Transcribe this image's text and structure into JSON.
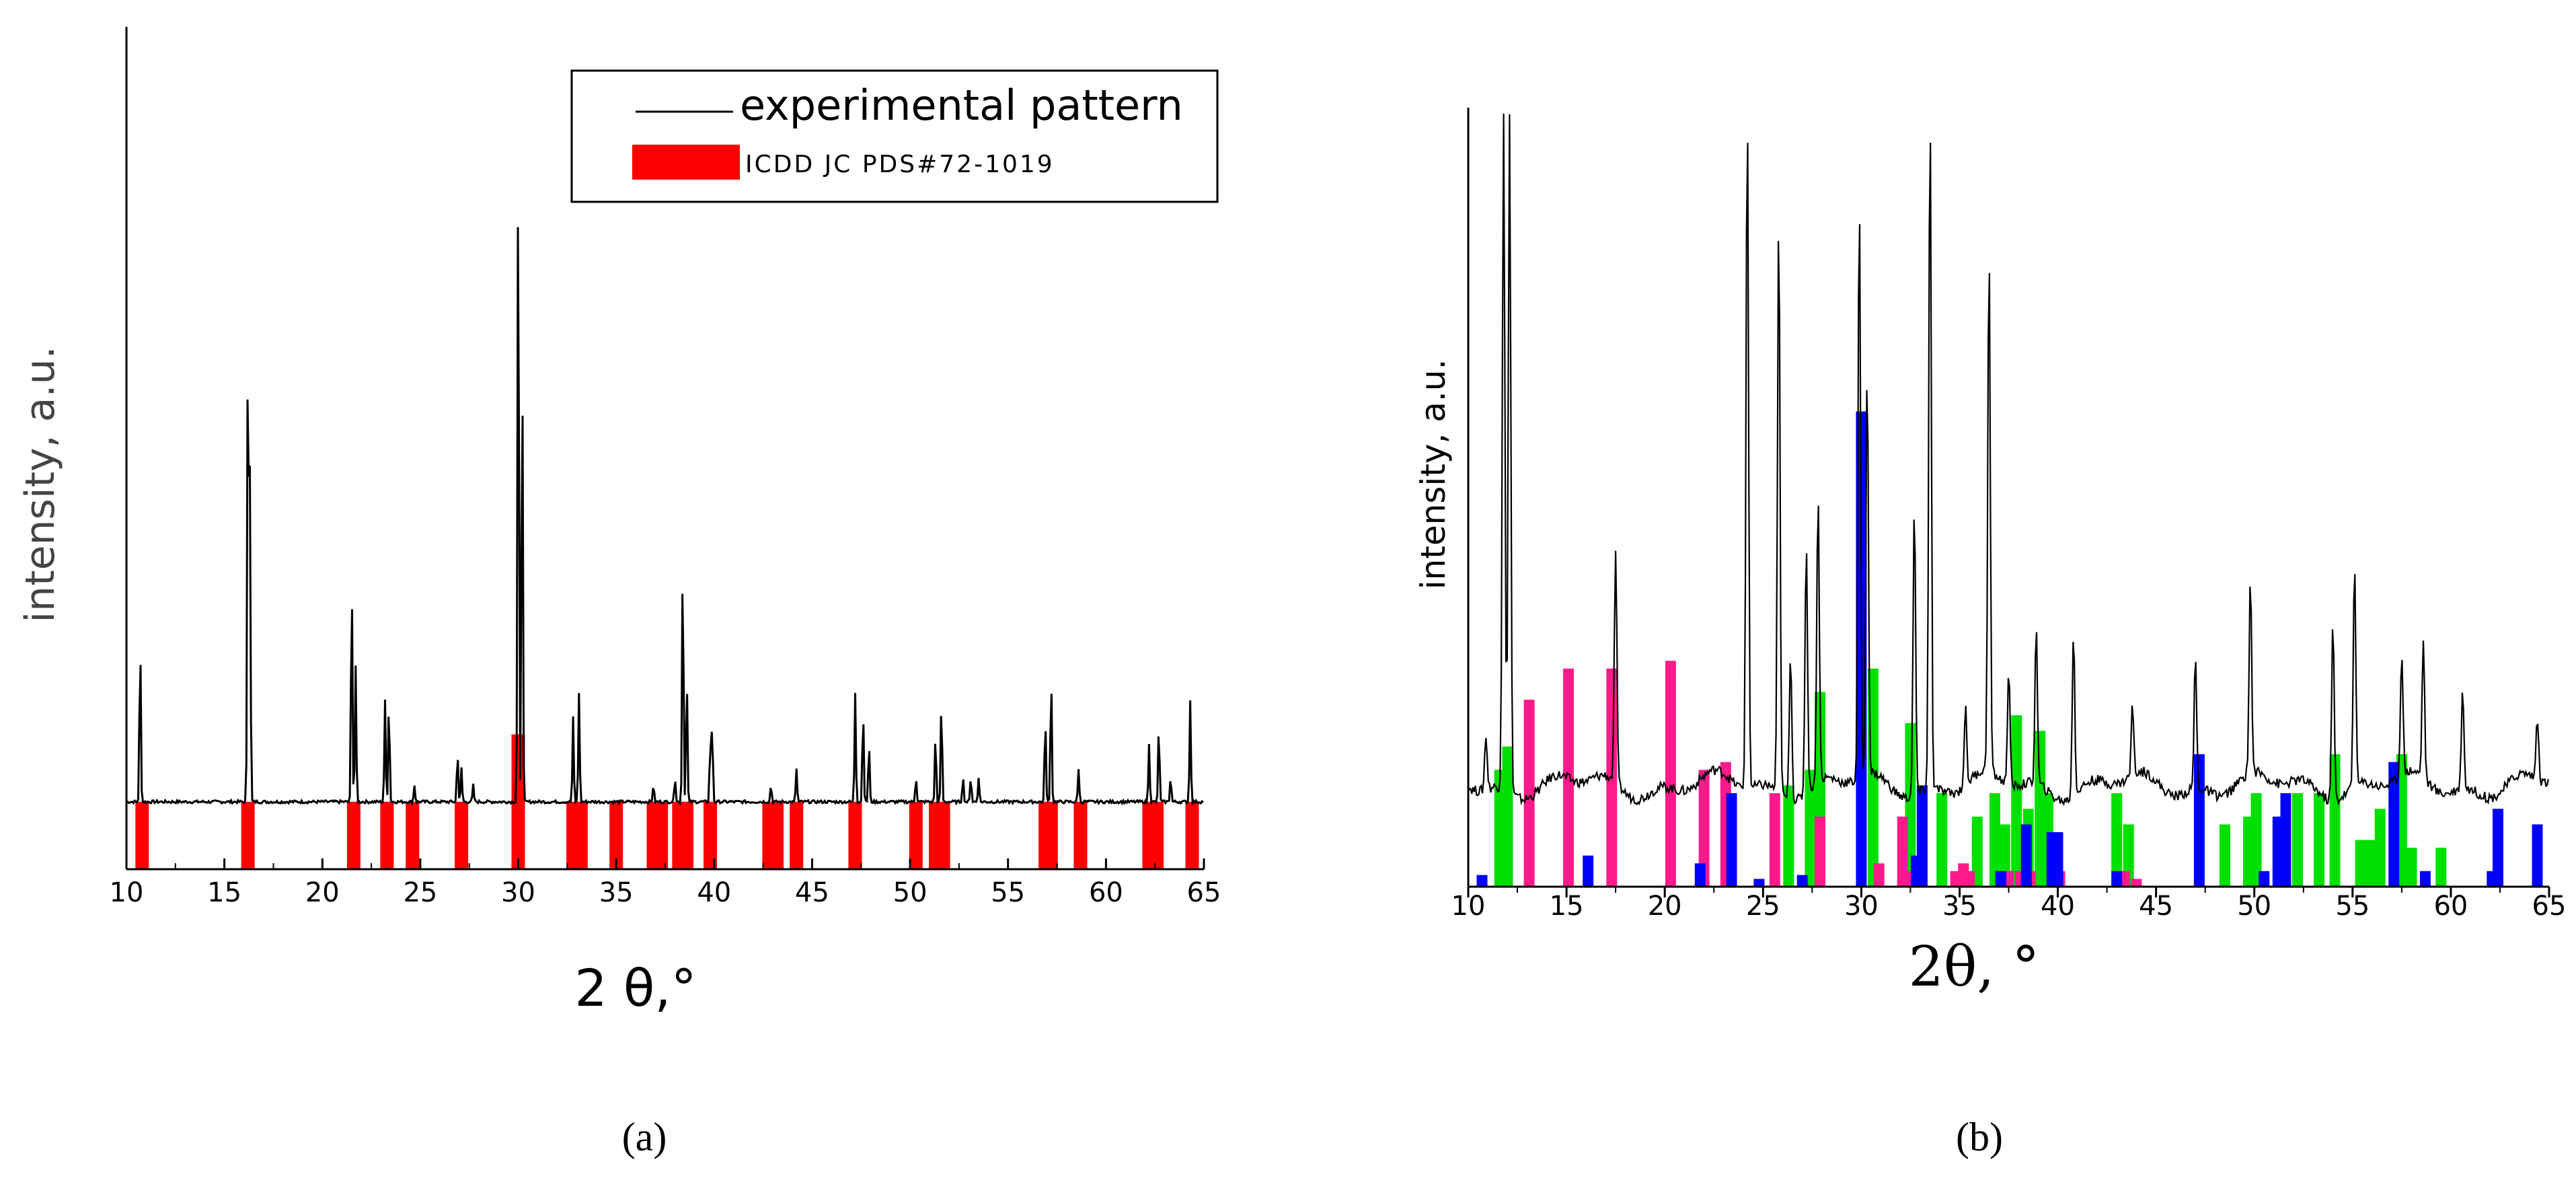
{
  "figure": {
    "panel_a_label": "(a)",
    "panel_b_label": "(b)"
  },
  "chart_data": [
    {
      "type": "line",
      "panel": "a",
      "title": "",
      "xlabel": "2 θ,°",
      "ylabel": "intensity, a.u.",
      "xlim": [
        10,
        65
      ],
      "ylim": [
        0,
        100
      ],
      "xticks": [
        "10",
        "15",
        "20",
        "25",
        "30",
        "35",
        "40",
        "45",
        "50",
        "55",
        "60",
        "65"
      ],
      "grid": false,
      "legend_position": "top-right",
      "legend": [
        {
          "label": "experimental pattern",
          "kind": "line",
          "color": "#000000"
        },
        {
          "label": "ICDD JC PDS#72-1019",
          "kind": "bar",
          "color": "#ff0000"
        }
      ],
      "series": [
        {
          "name": "experimental pattern",
          "color": "#000000",
          "baseline": 8,
          "peaks": [
            {
              "x": 10.7,
              "y": 27
            },
            {
              "x": 16.2,
              "y": 64
            },
            {
              "x": 16.3,
              "y": 47
            },
            {
              "x": 21.5,
              "y": 35
            },
            {
              "x": 21.7,
              "y": 24
            },
            {
              "x": 23.2,
              "y": 20
            },
            {
              "x": 23.4,
              "y": 20
            },
            {
              "x": 24.7,
              "y": 10
            },
            {
              "x": 26.9,
              "y": 14
            },
            {
              "x": 27.1,
              "y": 12
            },
            {
              "x": 27.7,
              "y": 10
            },
            {
              "x": 30.0,
              "y": 88
            },
            {
              "x": 30.2,
              "y": 62
            },
            {
              "x": 32.8,
              "y": 18
            },
            {
              "x": 33.1,
              "y": 21
            },
            {
              "x": 36.9,
              "y": 10
            },
            {
              "x": 38.0,
              "y": 11
            },
            {
              "x": 38.4,
              "y": 37
            },
            {
              "x": 38.6,
              "y": 23
            },
            {
              "x": 39.8,
              "y": 15
            },
            {
              "x": 39.9,
              "y": 17
            },
            {
              "x": 42.9,
              "y": 10
            },
            {
              "x": 44.2,
              "y": 12
            },
            {
              "x": 47.2,
              "y": 21
            },
            {
              "x": 47.6,
              "y": 19
            },
            {
              "x": 47.9,
              "y": 15
            },
            {
              "x": 50.3,
              "y": 11
            },
            {
              "x": 51.3,
              "y": 16
            },
            {
              "x": 51.6,
              "y": 20
            },
            {
              "x": 52.7,
              "y": 11
            },
            {
              "x": 53.1,
              "y": 11
            },
            {
              "x": 53.5,
              "y": 11
            },
            {
              "x": 56.9,
              "y": 18
            },
            {
              "x": 57.2,
              "y": 23
            },
            {
              "x": 58.6,
              "y": 12
            },
            {
              "x": 62.2,
              "y": 15
            },
            {
              "x": 62.7,
              "y": 17
            },
            {
              "x": 63.3,
              "y": 11
            },
            {
              "x": 64.3,
              "y": 20
            }
          ]
        }
      ],
      "reference_bars": [
        {
          "x": 10.8,
          "height": 8,
          "color": "#ff0000"
        },
        {
          "x": 16.2,
          "height": 8,
          "color": "#ff0000"
        },
        {
          "x": 21.6,
          "height": 8,
          "color": "#ff0000"
        },
        {
          "x": 23.3,
          "height": 8,
          "color": "#ff0000"
        },
        {
          "x": 24.6,
          "height": 8,
          "color": "#ff0000"
        },
        {
          "x": 27.1,
          "height": 8,
          "color": "#ff0000"
        },
        {
          "x": 30.0,
          "height": 16,
          "color": "#ff0000"
        },
        {
          "x": 32.8,
          "height": 8,
          "color": "#ff0000"
        },
        {
          "x": 33.2,
          "height": 8,
          "color": "#ff0000"
        },
        {
          "x": 35.0,
          "height": 8,
          "color": "#ff0000"
        },
        {
          "x": 36.9,
          "height": 8,
          "color": "#ff0000"
        },
        {
          "x": 37.3,
          "height": 8,
          "color": "#ff0000"
        },
        {
          "x": 38.2,
          "height": 8,
          "color": "#ff0000"
        },
        {
          "x": 38.6,
          "height": 8,
          "color": "#ff0000"
        },
        {
          "x": 39.8,
          "height": 8,
          "color": "#ff0000"
        },
        {
          "x": 42.8,
          "height": 8,
          "color": "#ff0000"
        },
        {
          "x": 43.2,
          "height": 8,
          "color": "#ff0000"
        },
        {
          "x": 44.2,
          "height": 8,
          "color": "#ff0000"
        },
        {
          "x": 47.2,
          "height": 8,
          "color": "#ff0000"
        },
        {
          "x": 50.3,
          "height": 8,
          "color": "#ff0000"
        },
        {
          "x": 51.3,
          "height": 8,
          "color": "#ff0000"
        },
        {
          "x": 51.7,
          "height": 8,
          "color": "#ff0000"
        },
        {
          "x": 56.9,
          "height": 8,
          "color": "#ff0000"
        },
        {
          "x": 57.2,
          "height": 8,
          "color": "#ff0000"
        },
        {
          "x": 58.7,
          "height": 8,
          "color": "#ff0000"
        },
        {
          "x": 62.2,
          "height": 8,
          "color": "#ff0000"
        },
        {
          "x": 62.6,
          "height": 8,
          "color": "#ff0000"
        },
        {
          "x": 64.4,
          "height": 8,
          "color": "#ff0000"
        }
      ]
    },
    {
      "type": "line",
      "panel": "b",
      "title": "",
      "xlabel": "2θ, °",
      "ylabel": "intensity, a.u.",
      "xlim": [
        10,
        65
      ],
      "ylim": [
        0,
        100
      ],
      "xticks": [
        "10",
        "15",
        "20",
        "25",
        "30",
        "35",
        "40",
        "45",
        "50",
        "55",
        "60",
        "65"
      ],
      "grid": false,
      "legend_position": "none",
      "series": [
        {
          "name": "experimental pattern",
          "color": "#000000",
          "baseline": 13,
          "peaks": [
            {
              "x": 10.9,
              "y": 20
            },
            {
              "x": 11.8,
              "y": 100
            },
            {
              "x": 12.1,
              "y": 100
            },
            {
              "x": 17.5,
              "y": 43
            },
            {
              "x": 24.2,
              "y": 100
            },
            {
              "x": 25.8,
              "y": 87
            },
            {
              "x": 26.4,
              "y": 32
            },
            {
              "x": 27.2,
              "y": 45
            },
            {
              "x": 27.8,
              "y": 50
            },
            {
              "x": 29.9,
              "y": 88
            },
            {
              "x": 30.3,
              "y": 65
            },
            {
              "x": 32.7,
              "y": 50
            },
            {
              "x": 33.5,
              "y": 100
            },
            {
              "x": 35.3,
              "y": 23
            },
            {
              "x": 36.5,
              "y": 80
            },
            {
              "x": 37.5,
              "y": 28
            },
            {
              "x": 38.9,
              "y": 33
            },
            {
              "x": 40.8,
              "y": 34
            },
            {
              "x": 43.8,
              "y": 22
            },
            {
              "x": 47.0,
              "y": 30
            },
            {
              "x": 49.8,
              "y": 38
            },
            {
              "x": 54.0,
              "y": 36
            },
            {
              "x": 55.1,
              "y": 42
            },
            {
              "x": 57.5,
              "y": 29
            },
            {
              "x": 58.6,
              "y": 31
            },
            {
              "x": 60.6,
              "y": 26
            },
            {
              "x": 64.4,
              "y": 21
            }
          ]
        }
      ],
      "reference_bars": [
        {
          "x": 11.6,
          "height": 15,
          "color": "#00e000"
        },
        {
          "x": 12.0,
          "height": 18,
          "color": "#00e000"
        },
        {
          "x": 26.3,
          "height": 13,
          "color": "#00e000"
        },
        {
          "x": 27.4,
          "height": 15,
          "color": "#00e000"
        },
        {
          "x": 27.9,
          "height": 25,
          "color": "#00e000"
        },
        {
          "x": 30.6,
          "height": 28,
          "color": "#00e000"
        },
        {
          "x": 32.5,
          "height": 21,
          "color": "#00e000"
        },
        {
          "x": 34.1,
          "height": 12,
          "color": "#00e000"
        },
        {
          "x": 35.9,
          "height": 9,
          "color": "#00e000"
        },
        {
          "x": 36.8,
          "height": 12,
          "color": "#00e000"
        },
        {
          "x": 37.3,
          "height": 8,
          "color": "#00e000"
        },
        {
          "x": 37.9,
          "height": 22,
          "color": "#00e000"
        },
        {
          "x": 38.5,
          "height": 10,
          "color": "#00e000"
        },
        {
          "x": 39.1,
          "height": 20,
          "color": "#00e000"
        },
        {
          "x": 39.5,
          "height": 12,
          "color": "#00e000"
        },
        {
          "x": 43.0,
          "height": 12,
          "color": "#00e000"
        },
        {
          "x": 43.6,
          "height": 8,
          "color": "#00e000"
        },
        {
          "x": 48.5,
          "height": 8,
          "color": "#00e000"
        },
        {
          "x": 49.7,
          "height": 9,
          "color": "#00e000"
        },
        {
          "x": 50.1,
          "height": 12,
          "color": "#00e000"
        },
        {
          "x": 52.2,
          "height": 12,
          "color": "#00e000"
        },
        {
          "x": 53.3,
          "height": 12,
          "color": "#00e000"
        },
        {
          "x": 54.1,
          "height": 17,
          "color": "#00e000"
        },
        {
          "x": 55.4,
          "height": 6,
          "color": "#00e000"
        },
        {
          "x": 55.9,
          "height": 6,
          "color": "#00e000"
        },
        {
          "x": 56.4,
          "height": 10,
          "color": "#00e000"
        },
        {
          "x": 57.5,
          "height": 17,
          "color": "#00e000"
        },
        {
          "x": 58.0,
          "height": 5,
          "color": "#00e000"
        },
        {
          "x": 59.5,
          "height": 5,
          "color": "#00e000"
        },
        {
          "x": 13.1,
          "height": 24,
          "color": "#ff1a8c"
        },
        {
          "x": 15.1,
          "height": 28,
          "color": "#ff1a8c"
        },
        {
          "x": 17.3,
          "height": 28,
          "color": "#ff1a8c"
        },
        {
          "x": 20.3,
          "height": 29,
          "color": "#ff1a8c"
        },
        {
          "x": 22.0,
          "height": 15,
          "color": "#ff1a8c"
        },
        {
          "x": 23.1,
          "height": 16,
          "color": "#ff1a8c"
        },
        {
          "x": 25.6,
          "height": 12,
          "color": "#ff1a8c"
        },
        {
          "x": 27.9,
          "height": 9,
          "color": "#ff1a8c"
        },
        {
          "x": 30.9,
          "height": 3,
          "color": "#ff1a8c"
        },
        {
          "x": 32.1,
          "height": 9,
          "color": "#ff1a8c"
        },
        {
          "x": 32.4,
          "height": 2,
          "color": "#ff1a8c"
        },
        {
          "x": 34.8,
          "height": 2,
          "color": "#ff1a8c"
        },
        {
          "x": 35.2,
          "height": 3,
          "color": "#ff1a8c"
        },
        {
          "x": 35.5,
          "height": 2,
          "color": "#ff1a8c"
        },
        {
          "x": 37.5,
          "height": 2,
          "color": "#ff1a8c"
        },
        {
          "x": 38.1,
          "height": 2,
          "color": "#ff1a8c"
        },
        {
          "x": 38.6,
          "height": 2,
          "color": "#ff1a8c"
        },
        {
          "x": 40.1,
          "height": 2,
          "color": "#ff1a8c"
        },
        {
          "x": 43.4,
          "height": 2,
          "color": "#ff1a8c"
        },
        {
          "x": 44.0,
          "height": 1,
          "color": "#ff1a8c"
        },
        {
          "x": 10.7,
          "height": 1.5,
          "color": "#0000ff"
        },
        {
          "x": 16.1,
          "height": 4,
          "color": "#0000ff"
        },
        {
          "x": 21.8,
          "height": 3,
          "color": "#0000ff"
        },
        {
          "x": 23.4,
          "height": 12,
          "color": "#0000ff"
        },
        {
          "x": 24.8,
          "height": 1,
          "color": "#0000ff"
        },
        {
          "x": 27.0,
          "height": 1.5,
          "color": "#0000ff"
        },
        {
          "x": 30.0,
          "height": 61,
          "color": "#0000ff"
        },
        {
          "x": 32.8,
          "height": 4,
          "color": "#0000ff"
        },
        {
          "x": 33.1,
          "height": 13,
          "color": "#0000ff"
        },
        {
          "x": 37.1,
          "height": 2,
          "color": "#0000ff"
        },
        {
          "x": 38.4,
          "height": 8,
          "color": "#0000ff"
        },
        {
          "x": 39.7,
          "height": 7,
          "color": "#0000ff"
        },
        {
          "x": 40.0,
          "height": 7,
          "color": "#0000ff"
        },
        {
          "x": 43.0,
          "height": 2,
          "color": "#0000ff"
        },
        {
          "x": 47.2,
          "height": 17,
          "color": "#0000ff"
        },
        {
          "x": 50.5,
          "height": 2,
          "color": "#0000ff"
        },
        {
          "x": 51.2,
          "height": 9,
          "color": "#0000ff"
        },
        {
          "x": 51.6,
          "height": 12,
          "color": "#0000ff"
        },
        {
          "x": 57.1,
          "height": 16,
          "color": "#0000ff"
        },
        {
          "x": 58.7,
          "height": 2,
          "color": "#0000ff"
        },
        {
          "x": 62.1,
          "height": 2,
          "color": "#0000ff"
        },
        {
          "x": 62.4,
          "height": 10,
          "color": "#0000ff"
        },
        {
          "x": 64.4,
          "height": 8,
          "color": "#0000ff"
        }
      ]
    }
  ]
}
